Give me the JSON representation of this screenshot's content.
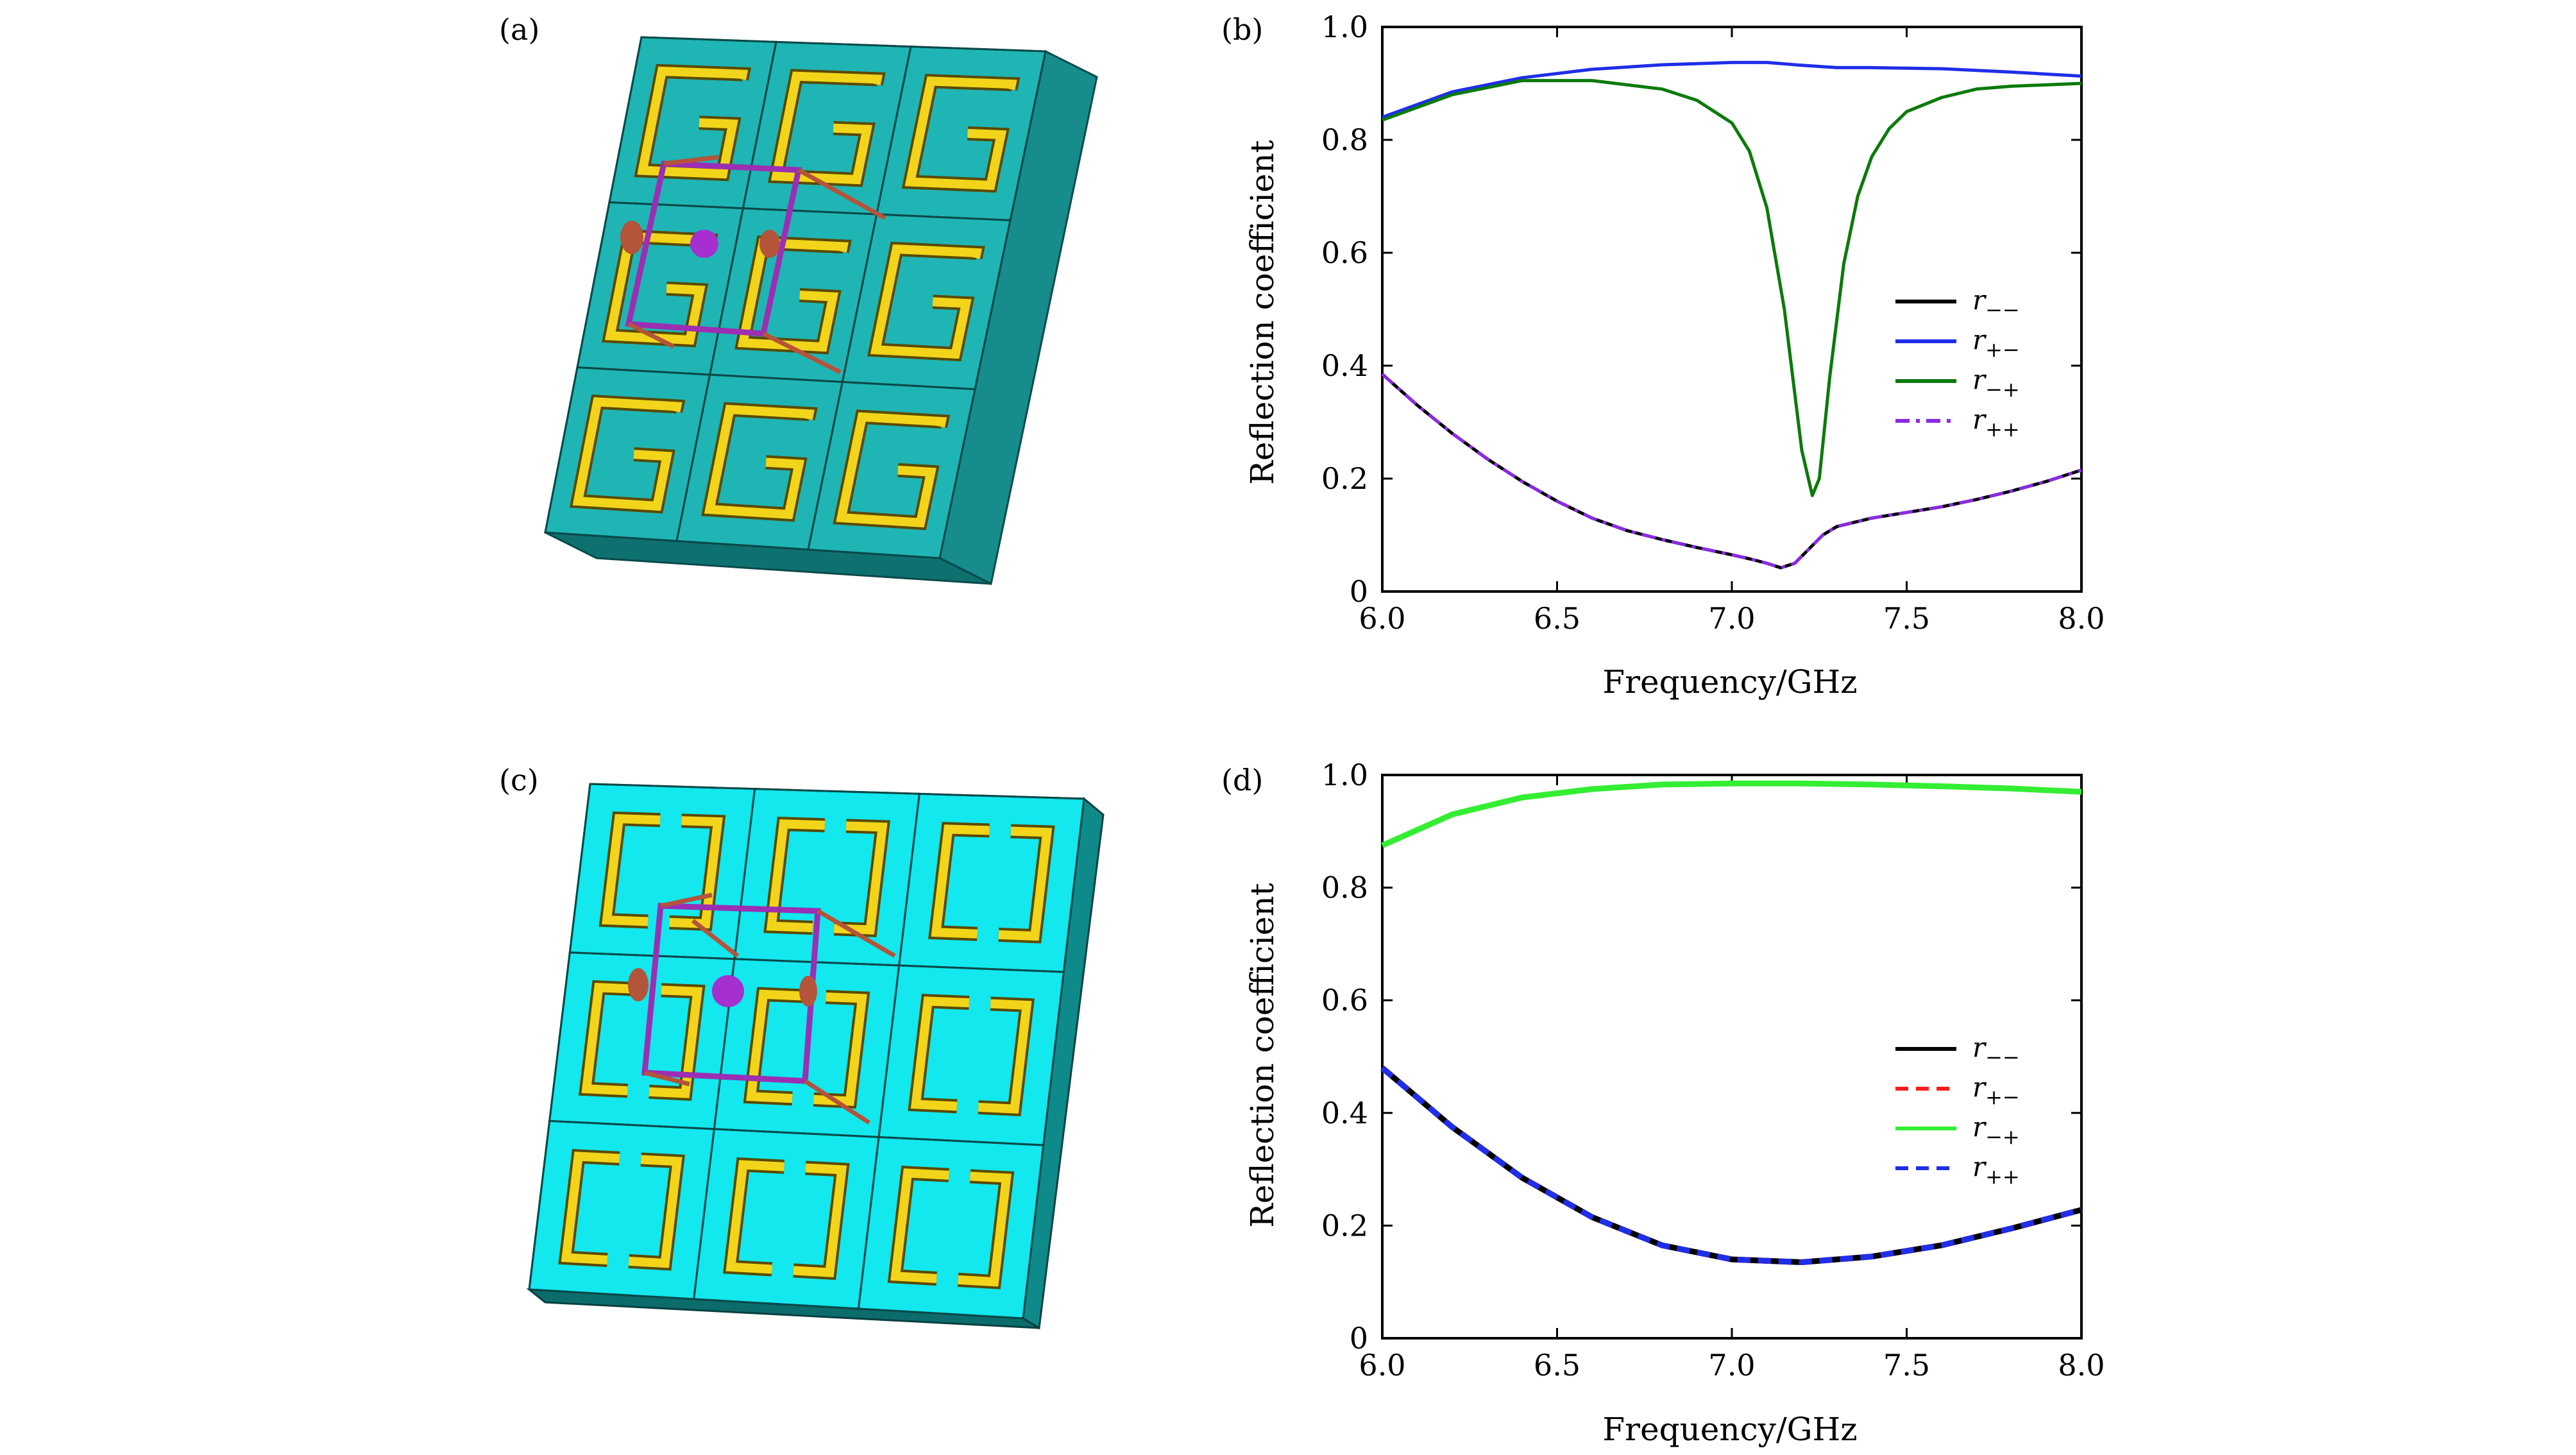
{
  "panels": {
    "a": {
      "label": "(a)",
      "structure": "split-ring unit cell array (G-shaped resonators)"
    },
    "b": {
      "label": "(b)"
    },
    "c": {
      "label": "(c)",
      "structure": "split-ring unit cell array (C-shaped resonators)"
    },
    "d": {
      "label": "(d)"
    }
  },
  "colors": {
    "cyan_a": "#1fb5b5",
    "cyan_c": "#12e8ee",
    "gold": "#f2d51a",
    "purple": "#9b2fb3",
    "rod": "#b3543b"
  },
  "chart_data": [
    {
      "id": "b",
      "type": "line",
      "title": "",
      "xlabel": "Frequency/GHz",
      "ylabel": "Reflection coefficient",
      "xlim": [
        6.0,
        8.0
      ],
      "ylim": [
        0,
        1.0
      ],
      "xticks": [
        "6.0",
        "6.5",
        "7.0",
        "7.5",
        "8.0"
      ],
      "yticks": [
        "0",
        "0.2",
        "0.4",
        "0.6",
        "0.8",
        "1.0"
      ],
      "legend_position": "center-right",
      "series": [
        {
          "name": "r",
          "sub": "−−",
          "color": "#000000",
          "dash": "",
          "x": [
            6.0,
            6.1,
            6.2,
            6.3,
            6.4,
            6.5,
            6.6,
            6.7,
            6.8,
            6.9,
            7.0,
            7.05,
            7.1,
            7.14,
            7.18,
            7.22,
            7.26,
            7.3,
            7.4,
            7.5,
            7.6,
            7.7,
            7.8,
            7.9,
            8.0
          ],
          "values": [
            0.385,
            0.33,
            0.28,
            0.235,
            0.195,
            0.16,
            0.13,
            0.108,
            0.092,
            0.078,
            0.065,
            0.058,
            0.05,
            0.042,
            0.05,
            0.075,
            0.1,
            0.115,
            0.13,
            0.14,
            0.15,
            0.163,
            0.178,
            0.195,
            0.215
          ]
        },
        {
          "name": "r",
          "sub": "+−",
          "color": "#1f2ee8",
          "dash": "",
          "x": [
            6.0,
            6.2,
            6.4,
            6.6,
            6.8,
            7.0,
            7.1,
            7.2,
            7.3,
            7.4,
            7.6,
            7.8,
            8.0
          ],
          "values": [
            0.84,
            0.885,
            0.91,
            0.925,
            0.933,
            0.937,
            0.937,
            0.932,
            0.928,
            0.928,
            0.926,
            0.92,
            0.913
          ]
        },
        {
          "name": "r",
          "sub": "−+",
          "color": "#0b7a0b",
          "dash": "",
          "x": [
            6.0,
            6.2,
            6.4,
            6.6,
            6.8,
            6.9,
            7.0,
            7.05,
            7.1,
            7.15,
            7.2,
            7.23,
            7.25,
            7.28,
            7.32,
            7.36,
            7.4,
            7.45,
            7.5,
            7.6,
            7.7,
            7.8,
            8.0
          ],
          "values": [
            0.835,
            0.88,
            0.905,
            0.905,
            0.89,
            0.87,
            0.83,
            0.78,
            0.68,
            0.5,
            0.25,
            0.17,
            0.2,
            0.38,
            0.58,
            0.7,
            0.77,
            0.82,
            0.85,
            0.875,
            0.89,
            0.895,
            0.9
          ]
        },
        {
          "name": "r",
          "sub": "++",
          "color": "#8a2be2",
          "dash": "22,10,6,10",
          "x": [
            6.0,
            6.1,
            6.2,
            6.3,
            6.4,
            6.5,
            6.6,
            6.7,
            6.8,
            6.9,
            7.0,
            7.05,
            7.1,
            7.14,
            7.18,
            7.22,
            7.26,
            7.3,
            7.4,
            7.5,
            7.6,
            7.7,
            7.8,
            7.9,
            8.0
          ],
          "values": [
            0.385,
            0.33,
            0.28,
            0.235,
            0.195,
            0.16,
            0.13,
            0.108,
            0.092,
            0.078,
            0.065,
            0.058,
            0.05,
            0.042,
            0.05,
            0.075,
            0.1,
            0.115,
            0.13,
            0.14,
            0.15,
            0.163,
            0.178,
            0.195,
            0.215
          ]
        }
      ]
    },
    {
      "id": "d",
      "type": "line",
      "title": "",
      "xlabel": "Frequency/GHz",
      "ylabel": "Reflection coefficient",
      "xlim": [
        6.0,
        8.0
      ],
      "ylim": [
        0,
        1.0
      ],
      "xticks": [
        "6.0",
        "6.5",
        "7.0",
        "7.5",
        "8.0"
      ],
      "yticks": [
        "0",
        "0.2",
        "0.4",
        "0.6",
        "0.8",
        "1.0"
      ],
      "legend_position": "center-right",
      "series": [
        {
          "name": "r",
          "sub": "−−",
          "color": "#000000",
          "dash": "",
          "x": [
            6.0,
            6.2,
            6.4,
            6.6,
            6.8,
            7.0,
            7.2,
            7.4,
            7.6,
            7.8,
            8.0
          ],
          "values": [
            0.48,
            0.375,
            0.285,
            0.215,
            0.165,
            0.14,
            0.135,
            0.145,
            0.165,
            0.195,
            0.228
          ]
        },
        {
          "name": "r",
          "sub": "+−",
          "color": "#ff1a1a",
          "dash": "20,12",
          "x": [
            6.0,
            6.2,
            6.4,
            6.6,
            6.8,
            7.0,
            7.2,
            7.4,
            7.6,
            7.8,
            8.0
          ],
          "values": [
            0.48,
            0.375,
            0.285,
            0.215,
            0.165,
            0.14,
            0.135,
            0.145,
            0.165,
            0.195,
            0.228
          ]
        },
        {
          "name": "r",
          "sub": "−+",
          "color": "#33ee33",
          "dash": "",
          "x": [
            6.0,
            6.2,
            6.4,
            6.6,
            6.8,
            7.0,
            7.2,
            7.4,
            7.6,
            7.8,
            8.0
          ],
          "values": [
            0.875,
            0.93,
            0.96,
            0.975,
            0.983,
            0.985,
            0.985,
            0.983,
            0.98,
            0.976,
            0.97
          ]
        },
        {
          "name": "r",
          "sub": "++",
          "color": "#1f2ee8",
          "dash": "20,12",
          "x": [
            6.0,
            6.2,
            6.4,
            6.6,
            6.8,
            7.0,
            7.2,
            7.4,
            7.6,
            7.8,
            8.0
          ],
          "values": [
            0.48,
            0.375,
            0.285,
            0.215,
            0.165,
            0.14,
            0.135,
            0.145,
            0.165,
            0.195,
            0.228
          ]
        }
      ]
    }
  ]
}
